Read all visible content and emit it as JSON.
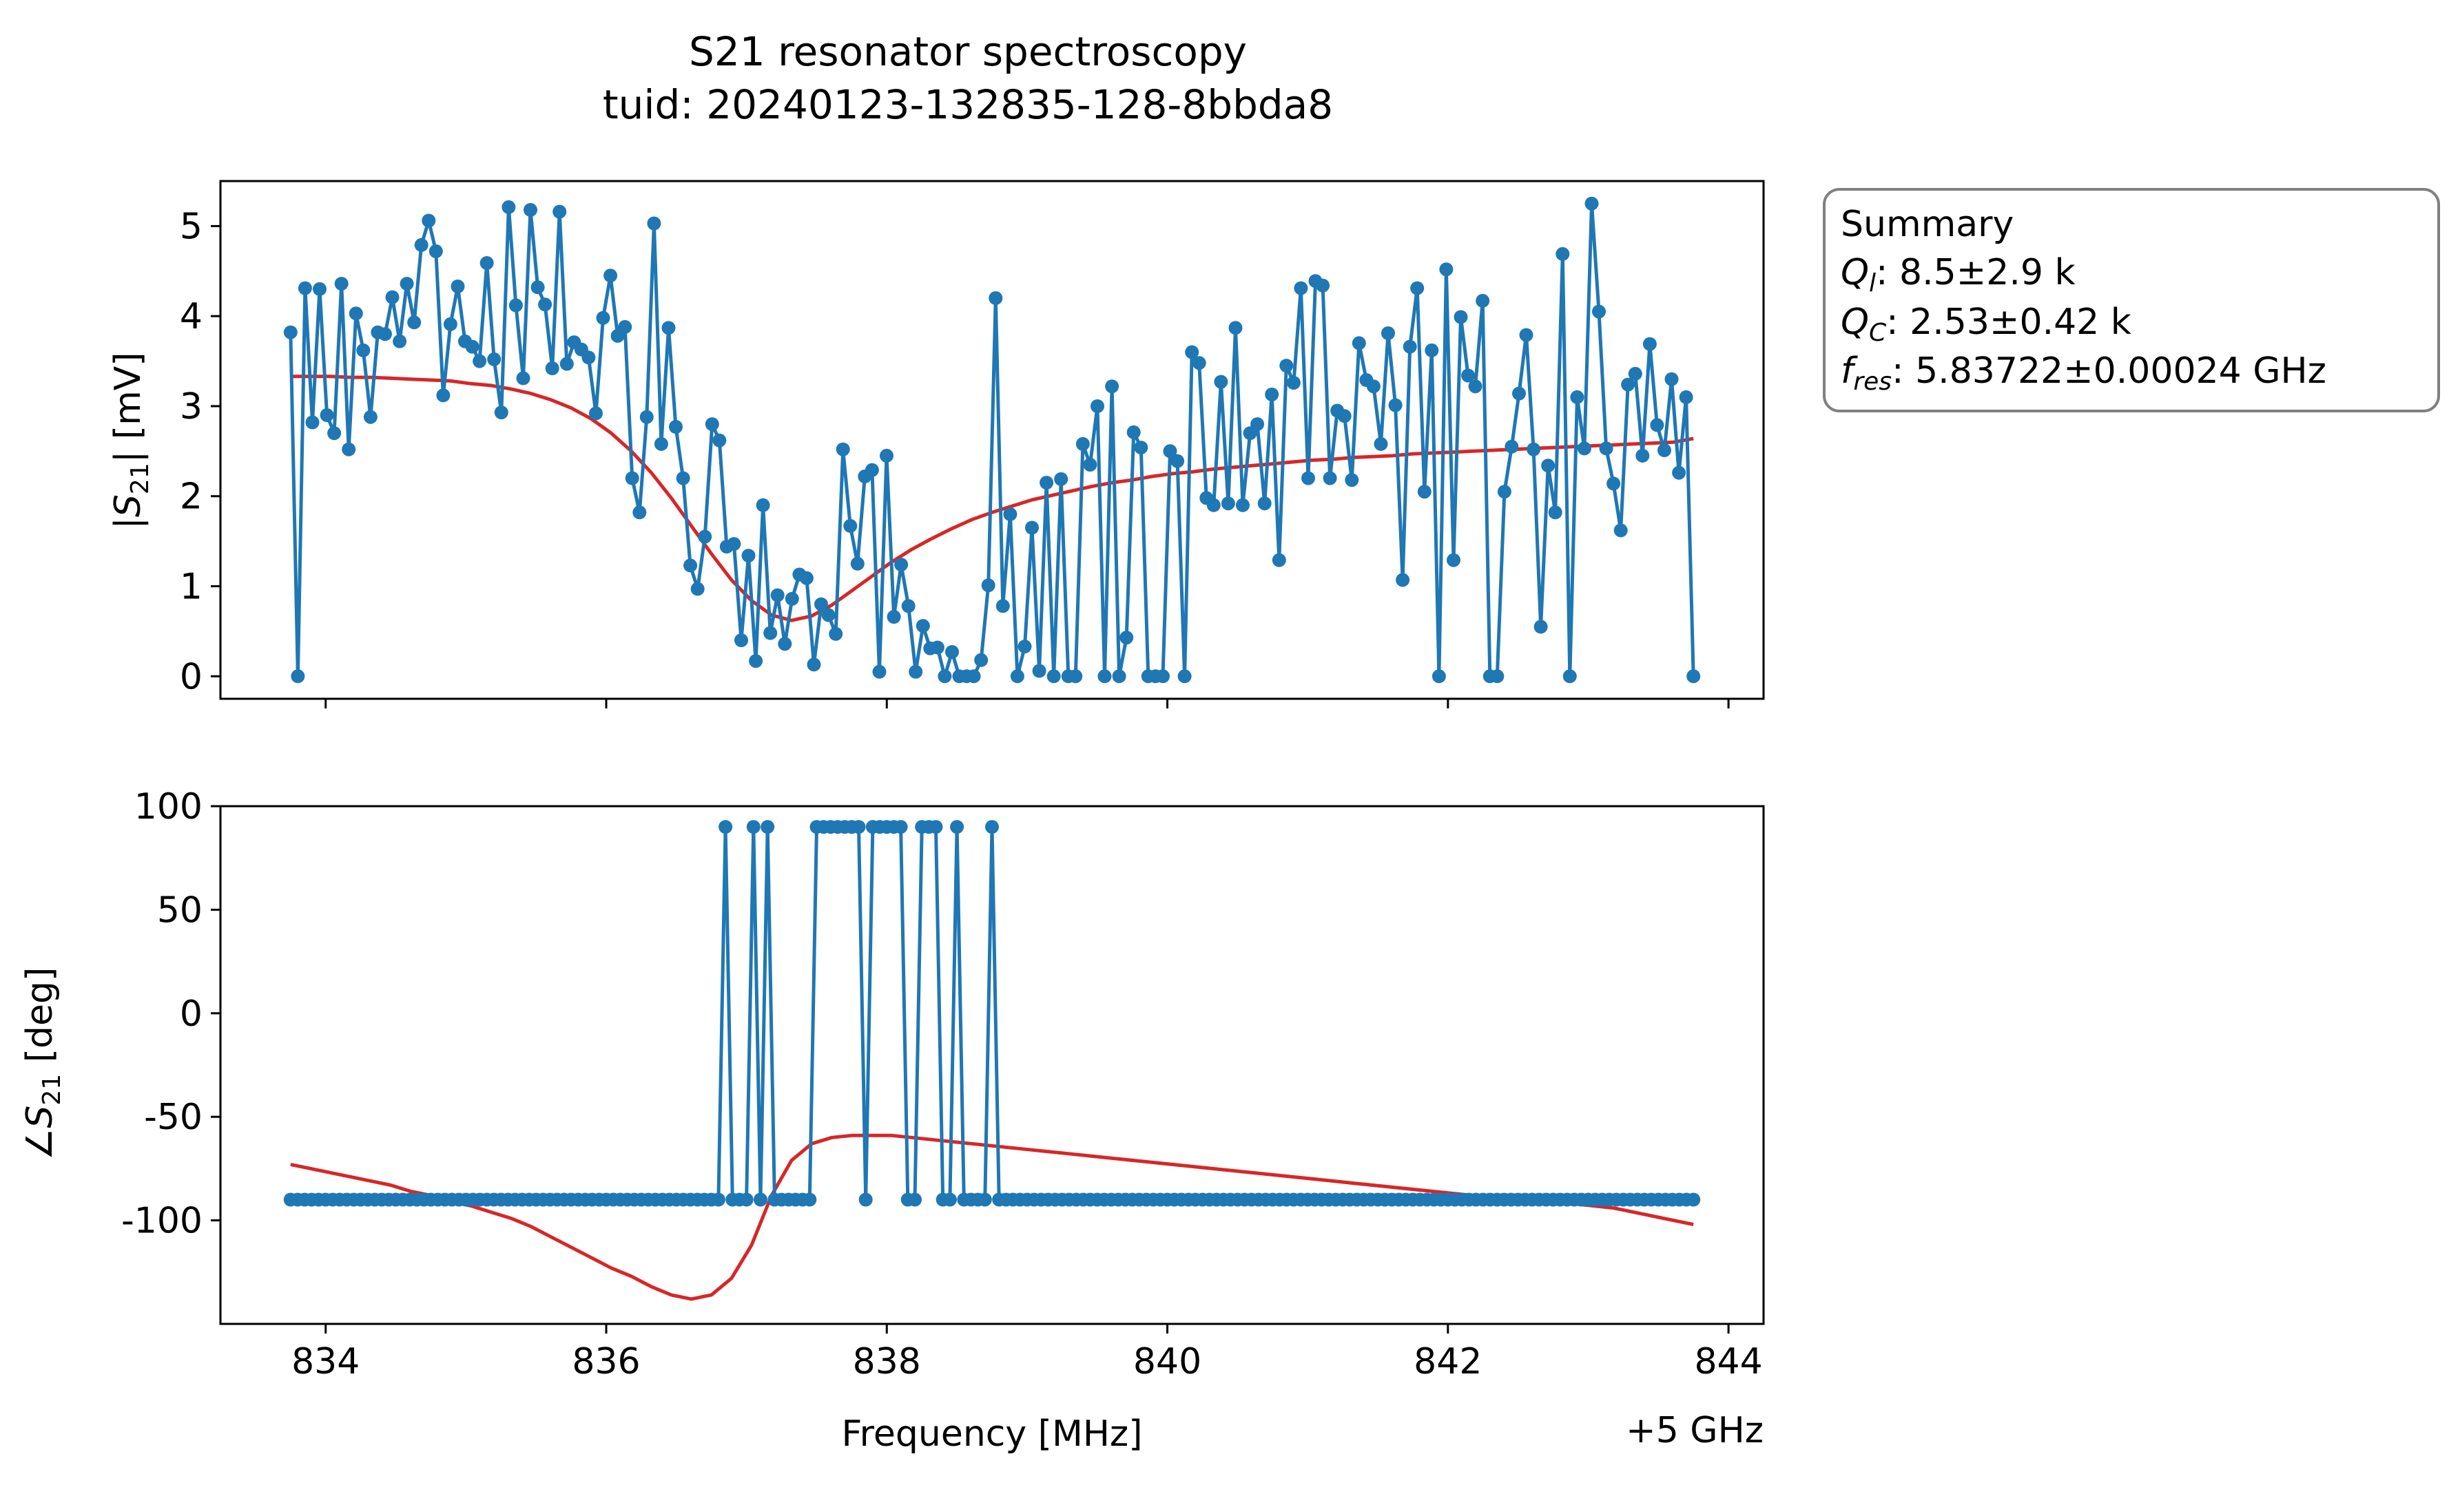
{
  "figure": {
    "title_line1": "S21 resonator spectroscopy",
    "title_line2": "tuid: 20240123-132835-128-8bbda8",
    "offset_label": "+5 GHz",
    "xlabel": "Frequency [MHz]"
  },
  "summary": {
    "heading": "Summary",
    "q_l_symbol": "Q",
    "q_l_sub": "l",
    "q_l_value": ": 8.5±2.9 k",
    "q_c_symbol": "Q",
    "q_c_sub": "C",
    "q_c_value": ": 2.53±0.42 k",
    "f_res_symbol": "f",
    "f_res_sub": "res",
    "f_res_value": ": 5.83722±0.00024 GHz"
  },
  "colors": {
    "data": "#1f77b4",
    "fit": "#d62728",
    "axes": "#000000",
    "box_edge": "#808080"
  },
  "chart_data": [
    {
      "type": "line",
      "panel": "magnitude",
      "ylabel_prefix": "|",
      "ylabel_sym": "S",
      "ylabel_sub": "21",
      "ylabel_suffix": "| [mV]",
      "xlim": [
        833.25,
        844.25
      ],
      "ylim": [
        -0.25,
        5.5
      ],
      "xticks": [
        834,
        836,
        838,
        840,
        842,
        844
      ],
      "yticks": [
        0,
        1,
        2,
        3,
        4,
        5
      ],
      "ytick_labels": [
        "0",
        "1",
        "2",
        "3",
        "4",
        "5"
      ],
      "series": [
        {
          "kind": "measured",
          "x_start": 833.75,
          "x_end": 843.75,
          "y": [
            3.82,
            0.0,
            4.31,
            2.82,
            4.3,
            2.9,
            2.7,
            4.36,
            2.52,
            4.03,
            3.62,
            2.88,
            3.82,
            3.8,
            4.21,
            3.72,
            4.36,
            3.93,
            4.79,
            5.06,
            4.72,
            3.12,
            3.91,
            4.33,
            3.72,
            3.66,
            3.5,
            4.59,
            3.52,
            2.93,
            5.21,
            4.12,
            3.31,
            5.18,
            4.32,
            4.13,
            3.42,
            5.16,
            3.47,
            3.71,
            3.63,
            3.54,
            2.92,
            3.98,
            4.45,
            3.78,
            3.88,
            2.2,
            1.82,
            2.88,
            5.03,
            2.58,
            3.87,
            2.77,
            2.2,
            1.23,
            0.97,
            1.55,
            2.8,
            2.62,
            1.44,
            1.47,
            0.4,
            1.34,
            0.17,
            1.9,
            0.48,
            0.9,
            0.36,
            0.86,
            1.13,
            1.09,
            0.13,
            0.8,
            0.68,
            0.47,
            2.52,
            1.67,
            1.25,
            2.22,
            2.29,
            0.05,
            2.45,
            0.66,
            1.24,
            0.78,
            0.05,
            0.56,
            0.31,
            0.32,
            0.0,
            0.27,
            0.0,
            0.0,
            0.0,
            0.18,
            1.01,
            4.2,
            0.78,
            1.8,
            0.0,
            0.33,
            1.65,
            0.06,
            2.15,
            0.0,
            2.19,
            0.0,
            0.0,
            2.58,
            2.35,
            3.0,
            0.0,
            3.22,
            0.0,
            0.43,
            2.71,
            2.54,
            0.0,
            0.0,
            0.0,
            2.5,
            2.39,
            0.0,
            3.6,
            3.48,
            1.98,
            1.9,
            3.27,
            1.92,
            3.87,
            1.9,
            2.7,
            2.8,
            1.92,
            3.13,
            1.29,
            3.45,
            3.26,
            4.31,
            2.2,
            4.39,
            4.34,
            2.2,
            2.95,
            2.89,
            2.18,
            3.7,
            3.29,
            3.22,
            2.58,
            3.81,
            3.01,
            1.07,
            3.66,
            4.31,
            2.05,
            3.62,
            0.0,
            4.52,
            1.29,
            3.99,
            3.34,
            3.22,
            4.17,
            0.0,
            0.0,
            2.05,
            2.55,
            3.14,
            3.79,
            2.52,
            0.55,
            2.34,
            1.82,
            4.69,
            0.0,
            3.1,
            2.53,
            5.25,
            4.05,
            2.53,
            2.14,
            1.62,
            3.24,
            3.36,
            2.45,
            3.69,
            2.79,
            2.51,
            3.3,
            2.26,
            3.1,
            0.0
          ]
        },
        {
          "kind": "fit",
          "x_start": 833.75,
          "x_end": 843.75,
          "y": [
            3.33,
            3.33,
            3.33,
            3.32,
            3.32,
            3.31,
            3.3,
            3.29,
            3.28,
            3.25,
            3.23,
            3.19,
            3.14,
            3.07,
            2.98,
            2.86,
            2.7,
            2.5,
            2.26,
            1.98,
            1.67,
            1.36,
            1.07,
            0.84,
            0.68,
            0.62,
            0.67,
            0.79,
            0.95,
            1.11,
            1.27,
            1.41,
            1.53,
            1.64,
            1.74,
            1.82,
            1.89,
            1.96,
            2.01,
            2.06,
            2.11,
            2.15,
            2.18,
            2.22,
            2.25,
            2.27,
            2.3,
            2.32,
            2.34,
            2.36,
            2.38,
            2.4,
            2.41,
            2.43,
            2.44,
            2.45,
            2.47,
            2.48,
            2.49,
            2.5,
            2.51,
            2.52,
            2.53,
            2.54,
            2.55,
            2.56,
            2.57,
            2.58,
            2.59,
            2.6,
            2.64
          ]
        }
      ]
    },
    {
      "type": "line",
      "panel": "phase",
      "ylabel_prefix": "∠",
      "ylabel_sym": "S",
      "ylabel_sub": "21",
      "ylabel_suffix": " [deg]",
      "xlim": [
        833.25,
        844.25
      ],
      "ylim": [
        -150,
        100
      ],
      "xticks": [
        834,
        836,
        838,
        840,
        842,
        844
      ],
      "xtick_labels": [
        "834",
        "836",
        "838",
        "840",
        "842",
        "844"
      ],
      "yticks": [
        100,
        50,
        0,
        -50,
        -100
      ],
      "ytick_labels": [
        "100",
        "50",
        "0",
        "-50",
        "-100"
      ],
      "series": [
        {
          "kind": "measured",
          "x_start": 833.75,
          "x_end": 843.75,
          "n": 201,
          "baseline": -90,
          "high_value": 90,
          "high_indices": [
            62,
            66,
            68,
            75,
            76,
            77,
            78,
            79,
            80,
            81,
            83,
            84,
            85,
            86,
            87,
            90,
            91,
            92,
            95,
            100
          ]
        },
        {
          "kind": "fit",
          "x_start": 833.75,
          "x_end": 843.75,
          "y": [
            -73,
            -75,
            -77,
            -79,
            -81,
            -83,
            -86,
            -88,
            -91,
            -93,
            -96,
            -99,
            -103,
            -108,
            -113,
            -118,
            -123,
            -127,
            -132,
            -136,
            -138,
            -136,
            -128,
            -112,
            -88,
            -71,
            -63,
            -60,
            -59,
            -59,
            -59,
            -60,
            -61,
            -62,
            -63,
            -64,
            -65,
            -66,
            -67,
            -68,
            -69,
            -70,
            -71,
            -72,
            -73,
            -74,
            -75,
            -76,
            -77,
            -78,
            -79,
            -80,
            -81,
            -82,
            -83,
            -84,
            -85,
            -86,
            -87,
            -88,
            -89,
            -89,
            -90,
            -91,
            -92,
            -93,
            -94,
            -96,
            -98,
            -100,
            -102
          ]
        }
      ]
    }
  ]
}
